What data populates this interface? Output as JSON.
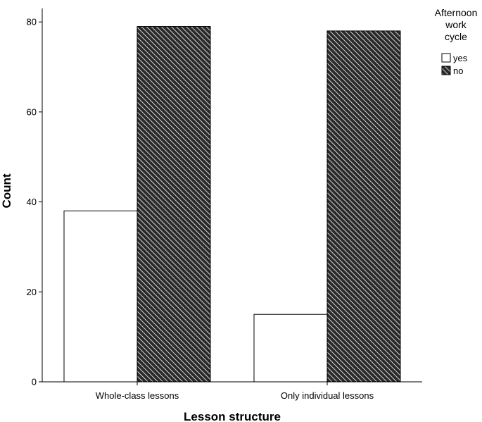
{
  "chart_data": {
    "type": "bar",
    "title": "",
    "xlabel": "Lesson structure",
    "ylabel": "Count",
    "categories": [
      "Whole-class lessons",
      "Only individual lessons"
    ],
    "series": [
      {
        "name": "yes",
        "values": [
          38,
          15
        ],
        "fill": "#ffffff",
        "pattern": "none"
      },
      {
        "name": "no",
        "values": [
          79,
          78
        ],
        "fill": "#2a2a2a",
        "pattern": "diagonal-hatch"
      }
    ],
    "ylim": [
      0,
      83
    ],
    "yticks": [
      0,
      20,
      40,
      60,
      80
    ],
    "legend": {
      "title_lines": [
        "Afternoon",
        "work",
        "cycle"
      ],
      "placement": "top-right"
    },
    "grid": false,
    "colors": {
      "axis": "#000000",
      "bar_stroke": "#000000",
      "hatch_line": "#ffffff"
    }
  }
}
